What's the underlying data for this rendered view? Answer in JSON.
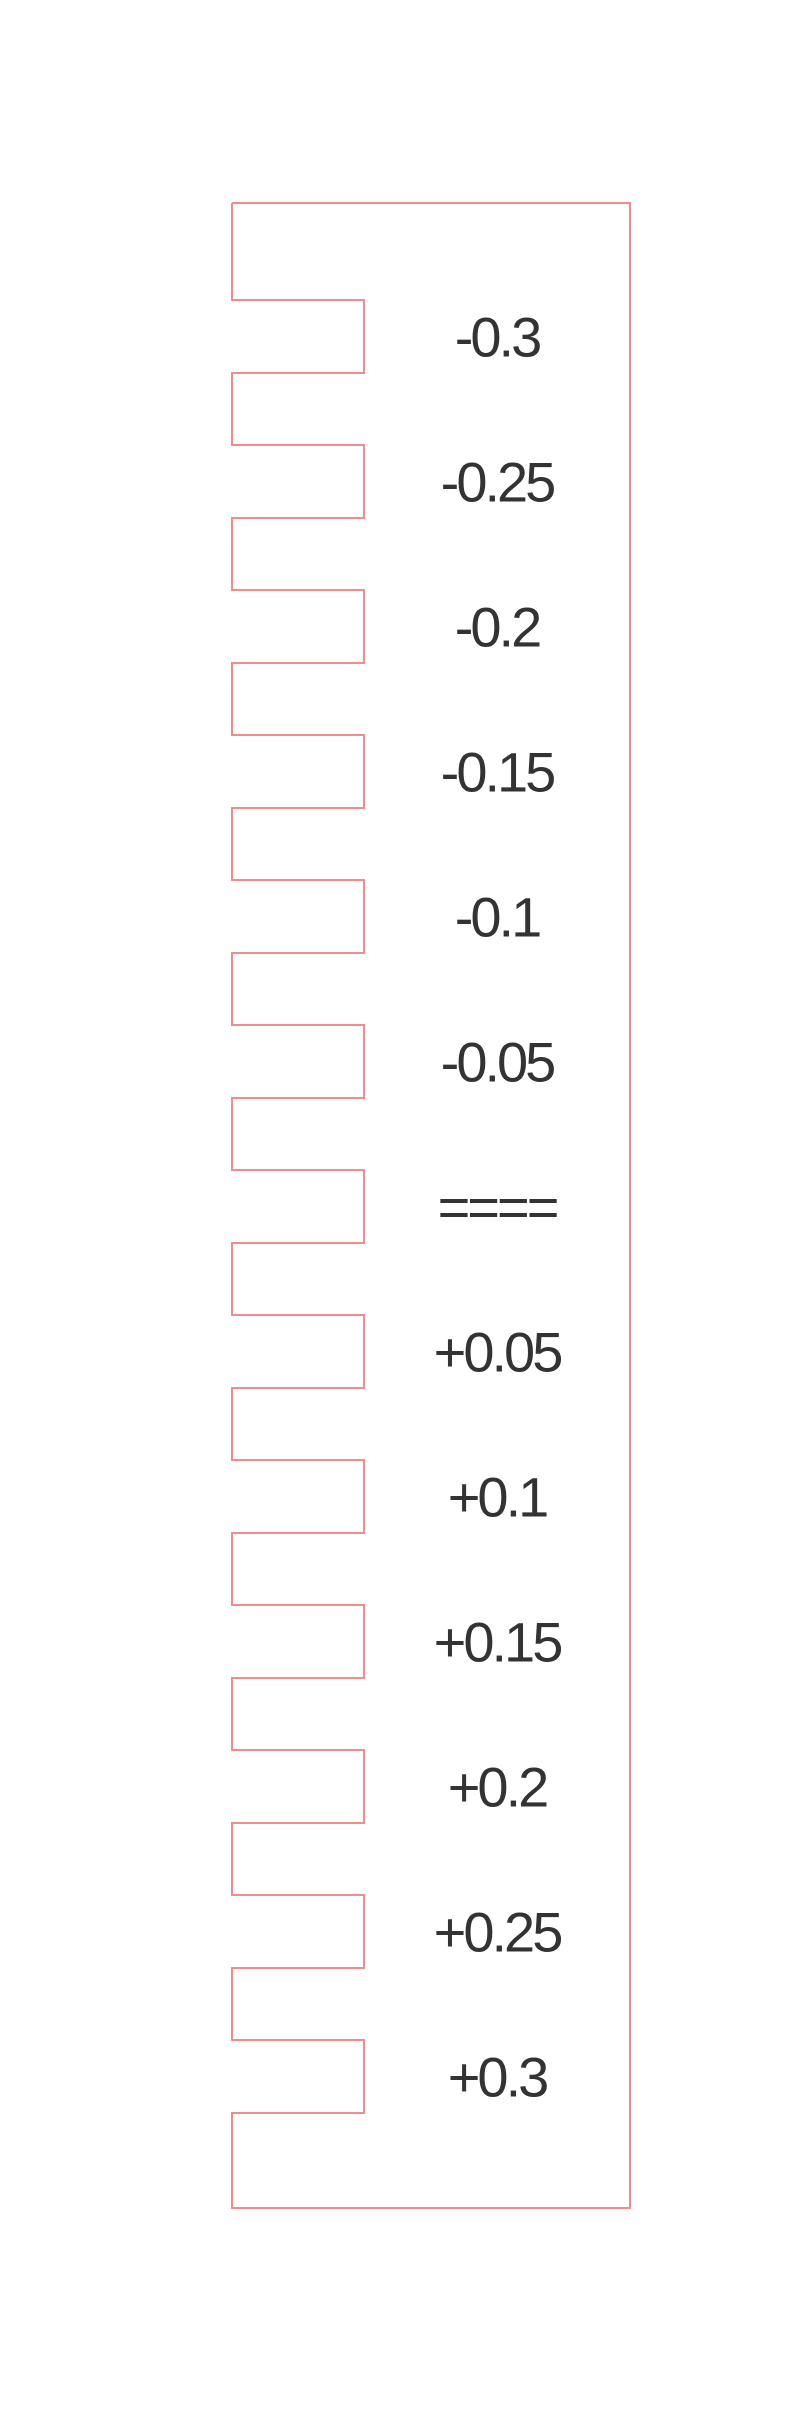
{
  "gauge": {
    "labels": [
      "-0.3",
      "-0.25",
      "-0.2",
      "-0.15",
      "-0.1",
      "-0.05",
      "====",
      "+0.05",
      "+0.1",
      "+0.15",
      "+0.2",
      "+0.25",
      "+0.3"
    ],
    "outline_color": "#f08c8c",
    "text_color": "#333333",
    "background_color": "#ffffff"
  }
}
